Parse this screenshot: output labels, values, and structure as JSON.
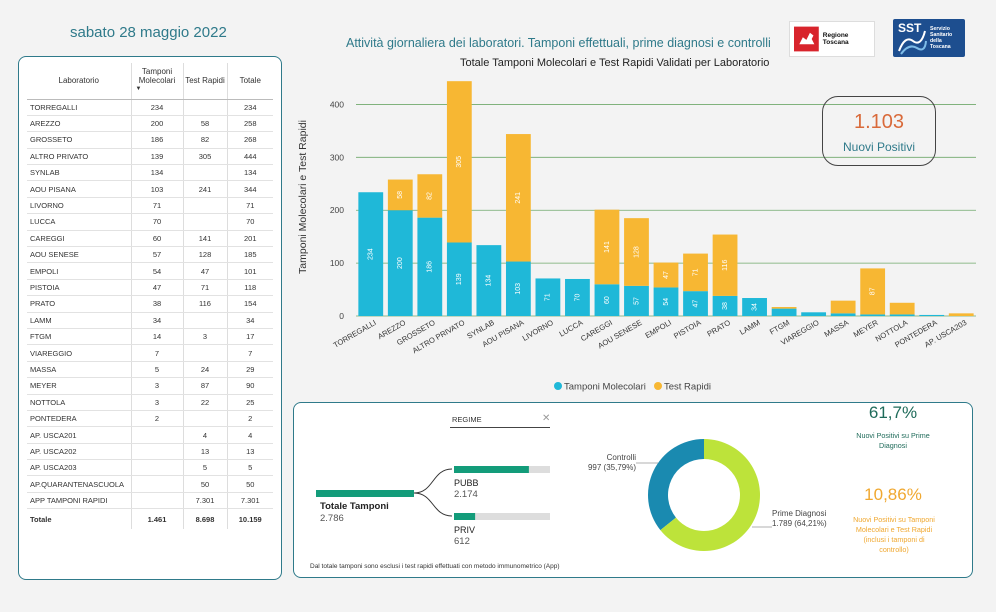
{
  "header": {
    "date": "sabato 28 maggio 2022",
    "main_title": "Attività giornaliera dei laboratori. Tamponi effettuali, prime diagnosi e controlli",
    "logo_rt": "Regione Toscana",
    "logo_sst_mark": "SST",
    "logo_sst_lines": [
      "Servizio",
      "Sanitario",
      "della",
      "Toscana"
    ]
  },
  "table": {
    "headers": [
      "Laboratorio",
      "Tamponi Molecolari",
      "Test Rapidi",
      "Totale"
    ],
    "rows": [
      [
        "TORREGALLI",
        "234",
        "",
        "234"
      ],
      [
        "AREZZO",
        "200",
        "58",
        "258"
      ],
      [
        "GROSSETO",
        "186",
        "82",
        "268"
      ],
      [
        "ALTRO PRIVATO",
        "139",
        "305",
        "444"
      ],
      [
        "SYNLAB",
        "134",
        "",
        "134"
      ],
      [
        "AOU PISANA",
        "103",
        "241",
        "344"
      ],
      [
        "LIVORNO",
        "71",
        "",
        "71"
      ],
      [
        "LUCCA",
        "70",
        "",
        "70"
      ],
      [
        "CAREGGI",
        "60",
        "141",
        "201"
      ],
      [
        "AOU SENESE",
        "57",
        "128",
        "185"
      ],
      [
        "EMPOLI",
        "54",
        "47",
        "101"
      ],
      [
        "PISTOIA",
        "47",
        "71",
        "118"
      ],
      [
        "PRATO",
        "38",
        "116",
        "154"
      ],
      [
        "LAMM",
        "34",
        "",
        "34"
      ],
      [
        "FTGM",
        "14",
        "3",
        "17"
      ],
      [
        "VIAREGGIO",
        "7",
        "",
        "7"
      ],
      [
        "MASSA",
        "5",
        "24",
        "29"
      ],
      [
        "MEYER",
        "3",
        "87",
        "90"
      ],
      [
        "NOTTOLA",
        "3",
        "22",
        "25"
      ],
      [
        "PONTEDERA",
        "2",
        "",
        "2"
      ],
      [
        "AP. USCA201",
        "",
        "4",
        "4"
      ],
      [
        "AP. USCA202",
        "",
        "13",
        "13"
      ],
      [
        "AP. USCA203",
        "",
        "5",
        "5"
      ],
      [
        "AP.QUARANTENASCUOLA",
        "",
        "50",
        "50"
      ],
      [
        "APP TAMPONI RAPIDI",
        "",
        "7.301",
        "7.301"
      ]
    ],
    "total": [
      "Totale",
      "1.461",
      "8.698",
      "10.159"
    ]
  },
  "chart_data": {
    "type": "bar",
    "stacked": true,
    "title": "Totale Tamponi Molecolari e Test Rapidi Validati per Laboratorio",
    "ylabel": "Tamponi Molecolari e Test Rapidi",
    "ylim": [
      0,
      450
    ],
    "yticks": [
      0,
      100,
      200,
      300,
      400
    ],
    "categories": [
      "TORREGALLI",
      "AREZZO",
      "GROSSETO",
      "ALTRO PRIVATO",
      "SYNLAB",
      "AOU PISANA",
      "LIVORNO",
      "LUCCA",
      "CAREGGI",
      "AOU SENESE",
      "EMPOLI",
      "PISTOIA",
      "PRATO",
      "LAMM",
      "FTGM",
      "VIAREGGIO",
      "MASSA",
      "MEYER",
      "NOTTOLA",
      "PONTEDERA",
      "AP. USCA203"
    ],
    "series": [
      {
        "name": "Tamponi Molecolari",
        "color": "#1fb8d8",
        "values": [
          234,
          200,
          186,
          139,
          134,
          103,
          71,
          70,
          60,
          57,
          54,
          47,
          38,
          34,
          14,
          7,
          5,
          3,
          3,
          2,
          0
        ]
      },
      {
        "name": "Test Rapidi",
        "color": "#f7b733",
        "values": [
          0,
          58,
          82,
          305,
          0,
          241,
          0,
          0,
          141,
          128,
          47,
          71,
          116,
          0,
          3,
          0,
          24,
          87,
          22,
          0,
          5
        ]
      }
    ],
    "legend_position": "bottom",
    "grid": true
  },
  "kpi": {
    "value": "1.103",
    "label": "Nuovi Positivi"
  },
  "decomposition": {
    "filter_label": "REGIME",
    "root": {
      "label": "Totale Tamponi",
      "value": "2.786",
      "share": 1.0
    },
    "children": [
      {
        "label": "PUBB",
        "value": "2.174",
        "share": 0.78
      },
      {
        "label": "PRIV",
        "value": "612",
        "share": 0.22
      }
    ],
    "note": "Dal totale tamponi sono esclusi i test rapidi effettuati con metodo immunometrico (App)"
  },
  "donut": {
    "segments": [
      {
        "label": "Controlli",
        "value_text": "997 (35,79%)",
        "value": 997,
        "color": "#1a8ab0"
      },
      {
        "label": "Prime Diagnosi",
        "value_text": "1.789 (64,21%)",
        "value": 1789,
        "color": "#bde33a"
      }
    ]
  },
  "stats": [
    {
      "value": "61,7%",
      "color": "#1f6b5a",
      "desc": "Nuovi Positivi su Prime Diagnosi"
    },
    {
      "value": "10,86%",
      "color": "#f0a830",
      "desc": "Nuovi Positivi su Tamponi Molecolari e Test Rapidi (inclusi i tamponi di controllo)"
    }
  ]
}
